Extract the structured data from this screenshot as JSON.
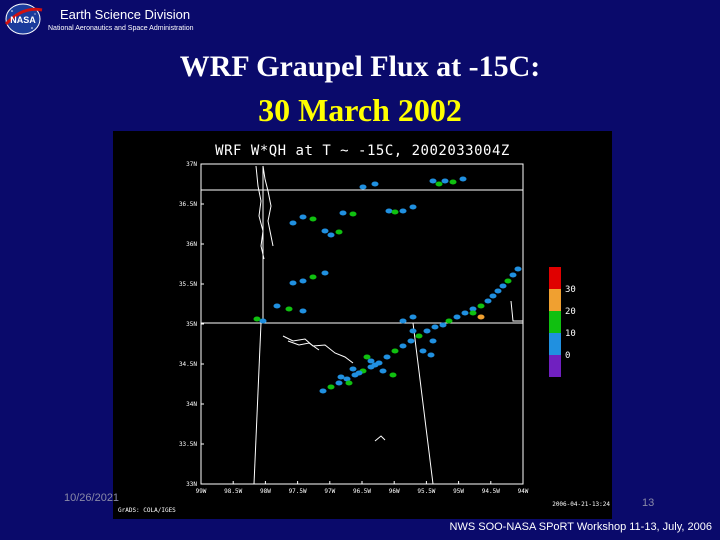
{
  "header": {
    "org_title": "Earth Science Division",
    "org_subtitle": "National Aeronautics and Space Administration",
    "logo_text": "NASA"
  },
  "slide": {
    "title_line1": "WRF Graupel Flux at -15C:",
    "title_line2": "30 March 2002"
  },
  "plot": {
    "title": "WRF W*QH at T ~ -15C, 2002033004Z",
    "lat_labels": [
      "37N",
      "36.5N",
      "36N",
      "35.5N",
      "35N",
      "34.5N",
      "34N",
      "33.5N",
      "33N"
    ],
    "lon_labels": [
      "99W",
      "98.5W",
      "98W",
      "97.5W",
      "97W",
      "96.5W",
      "96W",
      "95.5W",
      "95W",
      "94.5W",
      "94W"
    ],
    "colorbar_labels": [
      "30",
      "20",
      "10",
      "0"
    ],
    "colorbar_colors": [
      "#e00000",
      "#f0a030",
      "#10c010",
      "#2090e0",
      "#7020c0"
    ],
    "credit_left": "GrADS: COLA/IGES",
    "credit_right": "2006-04-21-13:24"
  },
  "footer": {
    "date": "10/26/2021",
    "page_number": "13",
    "workshop": "NWS SOO-NASA SPoRT Workshop 11-13, July, 2006"
  }
}
